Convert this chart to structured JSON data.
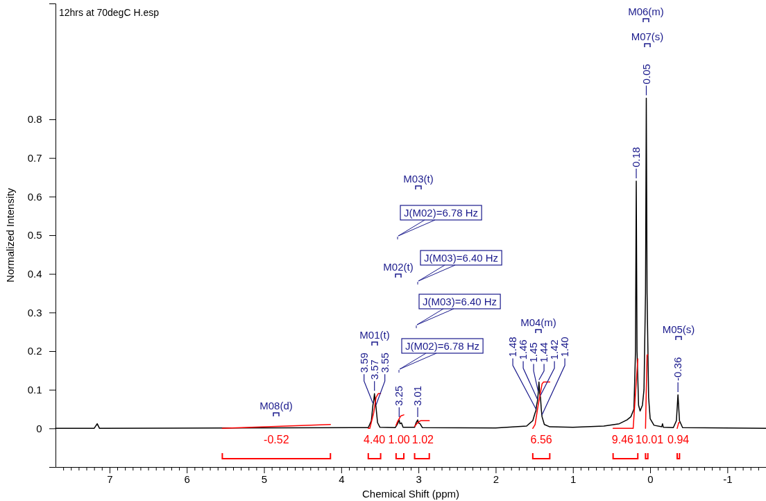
{
  "chart_data": {
    "type": "line",
    "title": "12hrs at 70degC H.esp",
    "xlabel": "Chemical Shift (ppm)",
    "ylabel": "Normalized Intensity",
    "xlim": [
      7.7,
      -1.5
    ],
    "ylim": [
      -0.1,
      1.1
    ],
    "yticks": [
      0,
      0.1,
      0.2,
      0.3,
      0.4,
      0.5,
      0.6,
      0.7,
      0.8
    ],
    "xticks": [
      {
        "value": 7.6,
        "label": null
      },
      {
        "value": 7.5,
        "label": null
      },
      {
        "value": 7.4,
        "label": null
      },
      {
        "value": 7.3,
        "label": null
      },
      {
        "value": 7.2,
        "label": null
      },
      {
        "value": 7.1,
        "label": null
      },
      7,
      {
        "value": 6.9,
        "label": null
      },
      {
        "value": 6.8,
        "label": null
      },
      {
        "value": 6.7,
        "label": null
      },
      {
        "value": 6.6,
        "label": null
      },
      {
        "value": 6.5,
        "label": null
      },
      {
        "value": 6.4,
        "label": null
      },
      {
        "value": 6.3,
        "label": null
      },
      {
        "value": 6.2,
        "label": null
      },
      {
        "value": 6.1,
        "label": null
      },
      6,
      {
        "value": 5.9,
        "label": null
      },
      {
        "value": 5.8,
        "label": null
      },
      {
        "value": 5.7,
        "label": null
      },
      {
        "value": 5.6,
        "label": null
      },
      {
        "value": 5.5,
        "label": null
      },
      {
        "value": 5.4,
        "label": null
      },
      {
        "value": 5.3,
        "label": null
      },
      {
        "value": 5.2,
        "label": null
      },
      {
        "value": 5.1,
        "label": null
      },
      5,
      {
        "value": 4.9,
        "label": null
      },
      {
        "value": 4.8,
        "label": null
      },
      {
        "value": 4.7,
        "label": null
      },
      {
        "value": 4.6,
        "label": null
      },
      {
        "value": 4.5,
        "label": null
      },
      {
        "value": 4.4,
        "label": null
      },
      {
        "value": 4.3,
        "label": null
      },
      {
        "value": 4.2,
        "label": null
      },
      {
        "value": 4.1,
        "label": null
      },
      4,
      {
        "value": 3.9,
        "label": null
      },
      {
        "value": 3.8,
        "label": null
      },
      {
        "value": 3.7,
        "label": null
      },
      {
        "value": 3.6,
        "label": null
      },
      {
        "value": 3.5,
        "label": null
      },
      {
        "value": 3.4,
        "label": null
      },
      {
        "value": 3.3,
        "label": null
      },
      {
        "value": 3.2,
        "label": null
      },
      {
        "value": 3.1,
        "label": null
      },
      3,
      {
        "value": 2.9,
        "label": null
      },
      {
        "value": 2.8,
        "label": null
      },
      {
        "value": 2.7,
        "label": null
      },
      {
        "value": 2.6,
        "label": null
      },
      {
        "value": 2.5,
        "label": null
      },
      {
        "value": 2.4,
        "label": null
      },
      {
        "value": 2.3,
        "label": null
      },
      {
        "value": 2.2,
        "label": null
      },
      {
        "value": 2.1,
        "label": null
      },
      2,
      {
        "value": 1.9,
        "label": null
      },
      {
        "value": 1.8,
        "label": null
      },
      {
        "value": 1.7,
        "label": null
      },
      {
        "value": 1.6,
        "label": null
      },
      {
        "value": 1.5,
        "label": null
      },
      {
        "value": 1.4,
        "label": null
      },
      {
        "value": 1.3,
        "label": null
      },
      {
        "value": 1.2,
        "label": null
      },
      {
        "value": 1.1,
        "label": null
      },
      1,
      {
        "value": 0.9,
        "label": null
      },
      {
        "value": 0.8,
        "label": null
      },
      {
        "value": 0.7,
        "label": null
      },
      {
        "value": 0.6,
        "label": null
      },
      {
        "value": 0.5,
        "label": null
      },
      {
        "value": 0.4,
        "label": null
      },
      {
        "value": 0.3,
        "label": null
      },
      {
        "value": 0.2,
        "label": null
      },
      {
        "value": 0.1,
        "label": null
      },
      0,
      {
        "value": -0.1,
        "label": null
      },
      {
        "value": -0.2,
        "label": null
      },
      {
        "value": -0.3,
        "label": null
      },
      {
        "value": -0.4,
        "label": null
      },
      {
        "value": -0.5,
        "label": null
      },
      {
        "value": -0.6,
        "label": null
      },
      {
        "value": -0.7,
        "label": null
      },
      {
        "value": -0.8,
        "label": null
      },
      {
        "value": -0.9,
        "label": null
      },
      -1,
      {
        "value": -1.1,
        "label": null
      },
      {
        "value": -1.2,
        "label": null
      },
      {
        "value": -1.3,
        "label": null
      },
      {
        "value": -1.4,
        "label": null
      }
    ],
    "series": [
      {
        "color": "#000000",
        "x": [
          7.7,
          7.2,
          7.16,
          7.13,
          3.65,
          3.61,
          3.59,
          3.58,
          3.57,
          3.56,
          3.55,
          3.53,
          3.5,
          3.3,
          3.27,
          3.25,
          3.24,
          3.22,
          3.2,
          3.05,
          3.03,
          3.01,
          3.0,
          2.98,
          2.95,
          2.0,
          1.6,
          1.52,
          1.49,
          1.48,
          1.47,
          1.46,
          1.45,
          1.44,
          1.43,
          1.42,
          1.41,
          1.4,
          1.37,
          1.3,
          1.0,
          0.6,
          0.4,
          0.3,
          0.25,
          0.21,
          0.19,
          0.18,
          0.17,
          0.15,
          0.13,
          0.1,
          0.08,
          0.06,
          0.05,
          0.04,
          0.02,
          0.0,
          -0.05,
          -0.15,
          -0.16,
          -0.17,
          -0.3,
          -0.34,
          -0.36,
          -0.38,
          -0.42,
          -1.5
        ],
        "values": [
          0,
          0,
          0.012,
          0,
          0.002,
          0.02,
          0.06,
          0.07,
          0.09,
          0.07,
          0.055,
          0.015,
          0.003,
          0.002,
          0.012,
          0.022,
          0.012,
          0.014,
          0.003,
          0.003,
          0.015,
          0.022,
          0.014,
          0.012,
          0.002,
          0.001,
          0.006,
          0.02,
          0.04,
          0.045,
          0.06,
          0.07,
          0.09,
          0.12,
          0.09,
          0.08,
          0.05,
          0.03,
          0.01,
          0.004,
          0.003,
          0.006,
          0.012,
          0.022,
          0.03,
          0.05,
          0.2,
          0.64,
          0.2,
          0.06,
          0.045,
          0.06,
          0.1,
          0.35,
          0.855,
          0.35,
          0.08,
          0.025,
          0.008,
          0.004,
          0.012,
          0.003,
          0.002,
          0.02,
          0.087,
          0.02,
          0.002,
          0
        ]
      },
      {
        "color": "#ff0000",
        "x": [
          5.54,
          4.14,
          4.1,
          3.65,
          3.63,
          3.58,
          3.55,
          3.52,
          3.49,
          3.45,
          3.29,
          3.27,
          3.23,
          3.19,
          3.15,
          3.05,
          3.01,
          2.97,
          2.86,
          2.8,
          1.52,
          1.49,
          1.45,
          1.4,
          1.38,
          1.3,
          1.0,
          0.48,
          0.22,
          0.18,
          0.16,
          0.1,
          0.06,
          0.05,
          0.04,
          0.03,
          0.0,
          -0.35,
          -0.37,
          -0.38
        ],
        "values": [
          0,
          0.01,
          null,
          0,
          0,
          0.04,
          0.08,
          0.09,
          0.09,
          null,
          0.008,
          0.018,
          0.032,
          0.035,
          null,
          0.005,
          0.015,
          0.02,
          0.02,
          null,
          0,
          0.01,
          0.06,
          0.115,
          0.12,
          0.12,
          null,
          0,
          0,
          0.12,
          0.18,
          null,
          0,
          0.1,
          0.19,
          0.19,
          null,
          0,
          0.015,
          0.015
        ]
      }
    ],
    "annotations": [
      {
        "text": "3.59",
        "x": 3.59,
        "y": 0.06
      },
      {
        "text": "3.57",
        "x": 3.57,
        "y": 0.09
      },
      {
        "text": "3.55",
        "x": 3.55,
        "y": 0.055
      },
      {
        "text": "3.25",
        "x": 3.25,
        "y": 0.022
      },
      {
        "text": "3.01",
        "x": 3.01,
        "y": 0.022
      },
      {
        "text": "1.48",
        "x": 1.48,
        "y": 0.045
      },
      {
        "text": "1.46",
        "x": 1.46,
        "y": 0.07
      },
      {
        "text": "1.45",
        "x": 1.45,
        "y": 0.09
      },
      {
        "text": "1.44",
        "x": 1.44,
        "y": 0.12
      },
      {
        "text": "1.42",
        "x": 1.42,
        "y": 0.08
      },
      {
        "text": "1.40",
        "x": 1.4,
        "y": 0.03
      },
      {
        "text": "0.18",
        "x": 0.18,
        "y": 0.64
      },
      {
        "text": "0.05",
        "x": 0.05,
        "y": 0.855
      },
      {
        "text": "-0.36",
        "x": -0.36,
        "y": 0.087
      },
      "M01(t)",
      "M02(t)",
      "M03(t)",
      "M04(m)",
      "M05(s)",
      "M06(m)",
      "M07(s)",
      "M08(d)",
      "J(M02)=6.78 Hz",
      "J(M03)=6.40 Hz",
      "J(M03)=6.40 Hz",
      "J(M02)=6.78 Hz",
      "-0.52",
      "4.40",
      "1.00",
      "1.02",
      "6.56",
      "9.46",
      "10.01",
      "0.94"
    ]
  }
}
